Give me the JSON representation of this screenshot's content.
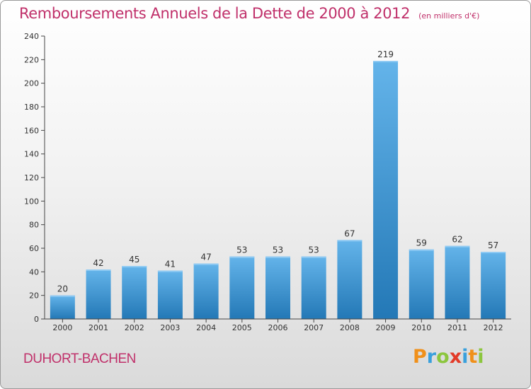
{
  "page": {
    "title": "Remboursements Annuels de la Dette de 2000 à 2012",
    "unit": "(en milliers d'€)",
    "town": "DUHORT-BACHEN",
    "logo": {
      "letters": [
        "P",
        "r",
        "o",
        "x",
        "i",
        "t",
        "i"
      ],
      "colors": [
        "#f0901a",
        "#3aa0dc",
        "#8cc63e",
        "#e23a28",
        "#3aa0dc",
        "#f0901a",
        "#8cc63e"
      ]
    },
    "colors": {
      "title": "#c0306a",
      "bar_light": "#64b4ea",
      "bar_dark": "#2378b6",
      "axis": "#444444"
    }
  },
  "chart_data": {
    "type": "bar",
    "title": "Remboursements Annuels de la Dette de 2000 à 2012",
    "ylabel": "(en milliers d'€)",
    "xlabel": "",
    "categories": [
      "2000",
      "2001",
      "2002",
      "2003",
      "2004",
      "2005",
      "2006",
      "2007",
      "2008",
      "2009",
      "2010",
      "2011",
      "2012"
    ],
    "values": [
      20,
      42,
      45,
      41,
      47,
      53,
      53,
      53,
      67,
      219,
      59,
      62,
      57
    ],
    "ylim": [
      0,
      240
    ],
    "yticks": [
      0,
      20,
      40,
      60,
      80,
      100,
      120,
      140,
      160,
      180,
      200,
      220,
      240
    ],
    "grid": false,
    "legend": "none"
  }
}
